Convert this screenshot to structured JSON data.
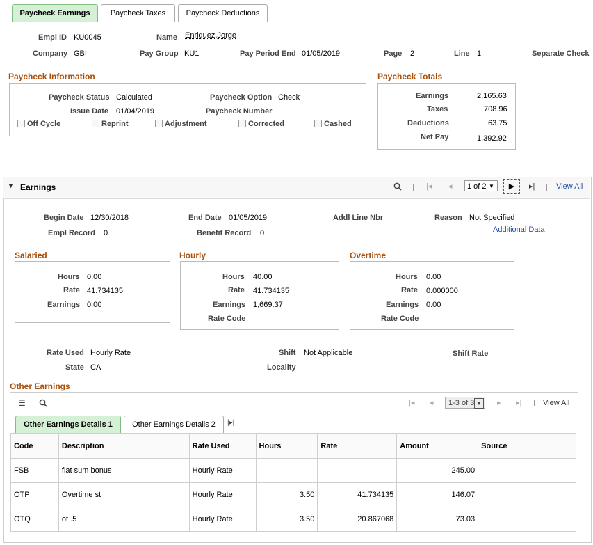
{
  "tabs": [
    "Paycheck Earnings",
    "Paycheck Taxes",
    "Paycheck Deductions"
  ],
  "header": {
    "empl_id_label": "Empl ID",
    "empl_id": "KU0045",
    "name_label": "Name",
    "name": "Enriquez,Jorge",
    "company_label": "Company",
    "company": "GBI",
    "pay_group_label": "Pay Group",
    "pay_group": "KU1",
    "pay_period_end_label": "Pay Period End",
    "pay_period_end": "01/05/2019",
    "page_label": "Page",
    "page": "2",
    "line_label": "Line",
    "line": "1",
    "separate_check_label": "Separate Check"
  },
  "paycheck_info": {
    "title": "Paycheck Information",
    "status_label": "Paycheck Status",
    "status": "Calculated",
    "option_label": "Paycheck Option",
    "option": "Check",
    "issue_date_label": "Issue Date",
    "issue_date": "01/04/2019",
    "number_label": "Paycheck Number",
    "checkboxes": [
      "Off Cycle",
      "Reprint",
      "Adjustment",
      "Corrected",
      "Cashed"
    ]
  },
  "totals": {
    "title": "Paycheck Totals",
    "earnings_label": "Earnings",
    "earnings": "2,165.63",
    "taxes_label": "Taxes",
    "taxes": "708.96",
    "deductions_label": "Deductions",
    "deductions": "63.75",
    "net_pay_label": "Net Pay",
    "net_pay": "1,392.92"
  },
  "earnings": {
    "title": "Earnings",
    "pager": "1 of 2",
    "view_all": "View All",
    "begin_date_label": "Begin Date",
    "begin_date": "12/30/2018",
    "end_date_label": "End Date",
    "end_date": "01/05/2019",
    "addl_line_label": "Addl Line Nbr",
    "reason_label": "Reason",
    "reason": "Not Specified",
    "additional_data": "Additional Data",
    "empl_record_label": "Empl Record",
    "empl_record": "0",
    "benefit_record_label": "Benefit Record",
    "benefit_record": "0",
    "salaried": {
      "title": "Salaried",
      "hours_label": "Hours",
      "hours": "0.00",
      "rate_label": "Rate",
      "rate": "41.734135",
      "earnings_label": "Earnings",
      "earnings": "0.00"
    },
    "hourly": {
      "title": "Hourly",
      "hours_label": "Hours",
      "hours": "40.00",
      "rate_label": "Rate",
      "rate": "41.734135",
      "earnings_label": "Earnings",
      "earnings": "1,669.37",
      "rate_code_label": "Rate Code"
    },
    "overtime": {
      "title": "Overtime",
      "hours_label": "Hours",
      "hours": "0.00",
      "rate_label": "Rate",
      "rate": "0.000000",
      "earnings_label": "Earnings",
      "earnings": "0.00",
      "rate_code_label": "Rate Code"
    },
    "rate_used_label": "Rate Used",
    "rate_used": "Hourly Rate",
    "shift_label": "Shift",
    "shift": "Not Applicable",
    "shift_rate_label": "Shift Rate",
    "state_label": "State",
    "state": "CA",
    "locality_label": "Locality"
  },
  "other_earnings": {
    "title": "Other Earnings",
    "pager": "1-3 of 3",
    "view_all": "View All",
    "subtabs": [
      "Other Earnings Details 1",
      "Other Earnings Details 2"
    ],
    "columns": [
      "Code",
      "Description",
      "Rate Used",
      "Hours",
      "Rate",
      "Amount",
      "Source"
    ],
    "rows": [
      [
        "FSB",
        "flat sum bonus",
        "Hourly Rate",
        "",
        "",
        "245.00",
        ""
      ],
      [
        "OTP",
        "Overtime st",
        "Hourly Rate",
        "3.50",
        "41.734135",
        "146.07",
        ""
      ],
      [
        "OTQ",
        "ot .5",
        "Hourly Rate",
        "3.50",
        "20.867068",
        "73.03",
        ""
      ]
    ]
  }
}
